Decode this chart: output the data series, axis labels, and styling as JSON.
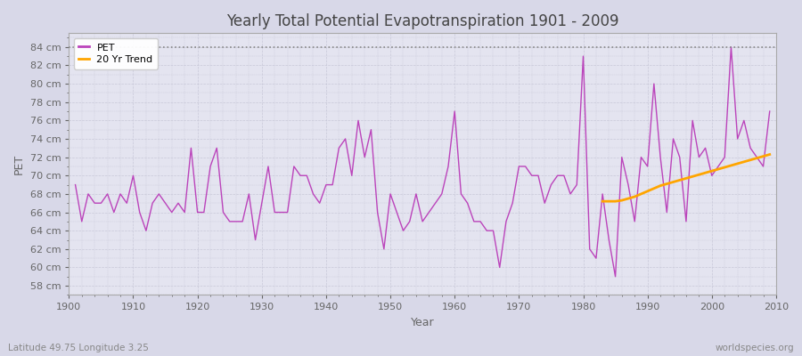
{
  "title": "Yearly Total Potential Evapotranspiration 1901 - 2009",
  "xlabel": "Year",
  "ylabel": "PET",
  "footer_left": "Latitude 49.75 Longitude 3.25",
  "footer_right": "worldspecies.org",
  "pet_color": "#BB44BB",
  "trend_color": "#FFA500",
  "background_color": "#D8D8E8",
  "plot_bg_color": "#E4E4F0",
  "grid_color": "#C8C8D8",
  "title_color": "#444444",
  "tick_color": "#666666",
  "ylim": [
    57,
    85.5
  ],
  "yticks": [
    58,
    60,
    62,
    64,
    66,
    68,
    70,
    72,
    74,
    76,
    78,
    80,
    82,
    84
  ],
  "dotted_line_y": 84,
  "xlim_left": 1900,
  "xlim_right": 2010,
  "years": [
    1901,
    1902,
    1903,
    1904,
    1905,
    1906,
    1907,
    1908,
    1909,
    1910,
    1911,
    1912,
    1913,
    1914,
    1915,
    1916,
    1917,
    1918,
    1919,
    1920,
    1921,
    1922,
    1923,
    1924,
    1925,
    1926,
    1927,
    1928,
    1929,
    1930,
    1931,
    1932,
    1933,
    1934,
    1935,
    1936,
    1937,
    1938,
    1939,
    1940,
    1941,
    1942,
    1943,
    1944,
    1945,
    1946,
    1947,
    1948,
    1949,
    1950,
    1951,
    1952,
    1953,
    1954,
    1955,
    1956,
    1957,
    1958,
    1959,
    1960,
    1961,
    1962,
    1963,
    1964,
    1965,
    1966,
    1967,
    1968,
    1969,
    1970,
    1971,
    1972,
    1973,
    1974,
    1975,
    1976,
    1977,
    1978,
    1979,
    1980,
    1981,
    1982,
    1983,
    1984,
    1985,
    1986,
    1987,
    1988,
    1989,
    1990,
    1991,
    1992,
    1993,
    1994,
    1995,
    1996,
    1997,
    1998,
    1999,
    2000,
    2001,
    2002,
    2003,
    2004,
    2005,
    2006,
    2007,
    2008,
    2009
  ],
  "pet_values": [
    69,
    65,
    68,
    67,
    67,
    68,
    66,
    68,
    67,
    70,
    66,
    64,
    67,
    68,
    67,
    66,
    67,
    66,
    73,
    66,
    66,
    71,
    73,
    66,
    65,
    65,
    65,
    68,
    63,
    67,
    71,
    66,
    66,
    66,
    71,
    70,
    70,
    68,
    67,
    69,
    69,
    73,
    74,
    70,
    76,
    72,
    75,
    66,
    62,
    68,
    66,
    64,
    65,
    68,
    65,
    66,
    67,
    68,
    71,
    77,
    68,
    67,
    65,
    65,
    64,
    64,
    60,
    65,
    67,
    71,
    71,
    70,
    70,
    67,
    69,
    70,
    70,
    68,
    69,
    83,
    62,
    61,
    68,
    63,
    59,
    72,
    69,
    65,
    72,
    71,
    80,
    72,
    66,
    74,
    72,
    65,
    76,
    72,
    73,
    70,
    71,
    72,
    84,
    74,
    76,
    73,
    72,
    71,
    77
  ],
  "trend_years": [
    1983,
    1984,
    1985,
    1986,
    1987,
    1988,
    1989,
    1990,
    1991,
    1992,
    1993,
    1994,
    1995,
    1996,
    1997,
    1998,
    1999,
    2000,
    2001,
    2002,
    2003,
    2004,
    2005,
    2006,
    2007,
    2008,
    2009
  ],
  "trend_values": [
    67.2,
    67.2,
    67.2,
    67.3,
    67.5,
    67.7,
    68.0,
    68.3,
    68.6,
    68.9,
    69.1,
    69.3,
    69.5,
    69.7,
    69.9,
    70.1,
    70.3,
    70.5,
    70.7,
    70.9,
    71.1,
    71.3,
    71.5,
    71.7,
    71.9,
    72.1,
    72.3
  ]
}
